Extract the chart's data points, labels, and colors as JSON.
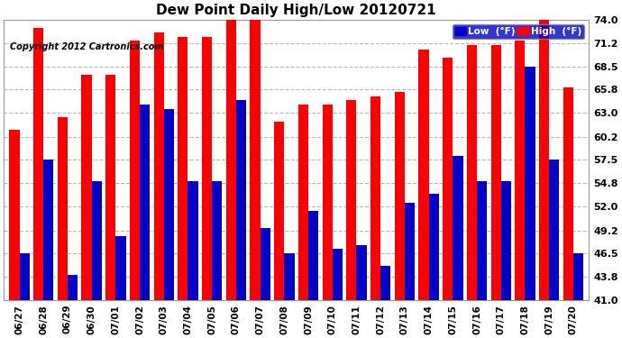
{
  "title": "Dew Point Daily High/Low 20120721",
  "copyright": "Copyright 2012 Cartronics.com",
  "categories": [
    "06/27",
    "06/28",
    "06/29",
    "06/30",
    "07/01",
    "07/02",
    "07/03",
    "07/04",
    "07/05",
    "07/06",
    "07/07",
    "07/08",
    "07/09",
    "07/10",
    "07/11",
    "07/12",
    "07/13",
    "07/14",
    "07/15",
    "07/16",
    "07/17",
    "07/18",
    "07/19",
    "07/20"
  ],
  "high_values": [
    61.0,
    73.0,
    62.5,
    67.5,
    67.5,
    71.5,
    72.5,
    72.0,
    72.0,
    74.0,
    74.0,
    62.0,
    64.0,
    64.0,
    64.5,
    65.0,
    65.5,
    70.5,
    69.5,
    71.0,
    71.0,
    71.5,
    74.0,
    66.0
  ],
  "low_values": [
    46.5,
    57.5,
    44.0,
    55.0,
    48.5,
    64.0,
    63.5,
    55.0,
    55.0,
    64.5,
    49.5,
    46.5,
    51.5,
    47.0,
    47.5,
    45.0,
    52.5,
    53.5,
    58.0,
    55.0,
    55.0,
    68.5,
    57.5,
    46.5
  ],
  "ymin": 41.0,
  "ymax": 74.0,
  "yticks": [
    41.0,
    43.8,
    46.5,
    49.2,
    52.0,
    54.8,
    57.5,
    60.2,
    63.0,
    65.8,
    68.5,
    71.2,
    74.0
  ],
  "high_color": "#ff0000",
  "low_color": "#0000cc",
  "bg_color": "#ffffff",
  "grid_color": "#b8b8b8",
  "title_fontsize": 11,
  "legend_label_low": "Low  (°F)",
  "legend_label_high": "High  (°F)"
}
